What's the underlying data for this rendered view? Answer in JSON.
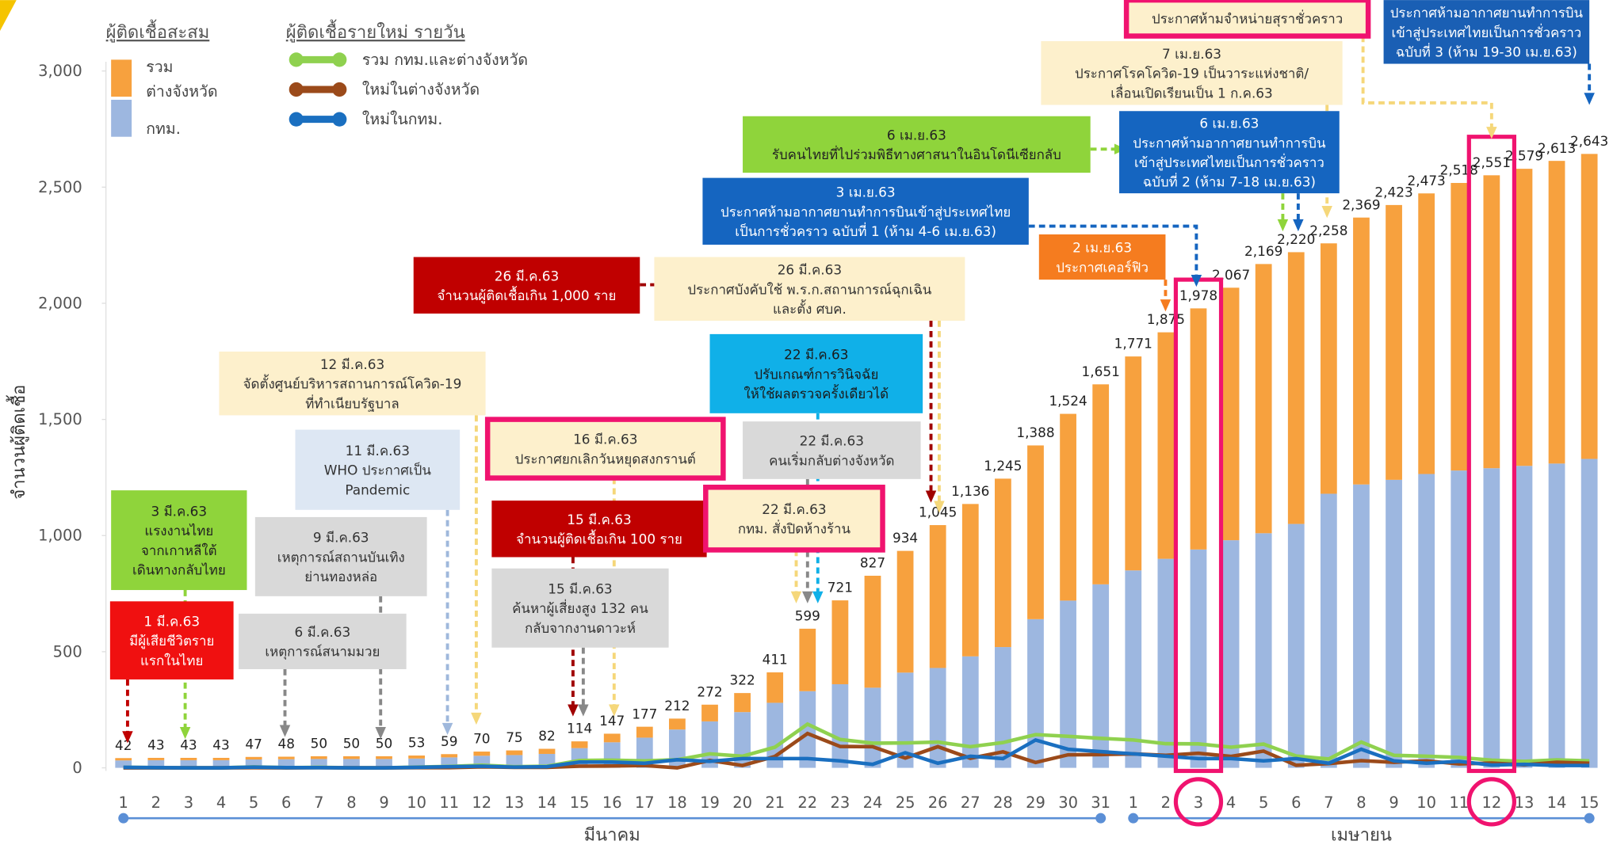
{
  "chart_data": {
    "type": "bar",
    "stacked": true,
    "y_label": "จำนวนผู้ติดเชื้อ",
    "categories": [
      "1",
      "2",
      "3",
      "4",
      "5",
      "6",
      "7",
      "8",
      "9",
      "10",
      "11",
      "12",
      "13",
      "14",
      "15",
      "16",
      "17",
      "18",
      "19",
      "20",
      "21",
      "22",
      "23",
      "24",
      "25",
      "26",
      "27",
      "28",
      "29",
      "30",
      "31",
      "1",
      "2",
      "3",
      "4",
      "5",
      "6",
      "7",
      "8",
      "9",
      "10",
      "11",
      "12",
      "13",
      "14",
      "15"
    ],
    "month_labels": [
      "มีนาคม",
      "เมษายน"
    ],
    "ylim": [
      0,
      3000
    ],
    "yticks": [
      0,
      500,
      {
        "value": 1000,
        "label": "1,000"
      },
      {
        "value": 1500,
        "label": "1,500"
      },
      {
        "value": 2000,
        "label": "2,000"
      },
      {
        "value": 2500,
        "label": "2,500"
      },
      {
        "value": 3000,
        "label": "3,000"
      }
    ],
    "grid": false,
    "stack_legend_title": "ผู้ติดเชื้อสะสม",
    "line_legend_title": "ผู้ติดเชื้อรายใหม่ รายวัน",
    "series": [
      {
        "name": "กทม.",
        "color": "#9db7e0",
        "values": [
          32,
          33,
          33,
          33,
          36,
          37,
          38,
          38,
          38,
          40,
          45,
          52,
          55,
          60,
          85,
          110,
          130,
          165,
          200,
          240,
          280,
          330,
          360,
          345,
          410,
          430,
          480,
          520,
          640,
          720,
          790,
          850,
          900,
          940,
          980,
          1010,
          1050,
          1180,
          1220,
          1240,
          1265,
          1280,
          1290,
          1300,
          1310,
          1330
        ]
      },
      {
        "name": "รวม ต่างจังหวัด",
        "color": "#f7a13e",
        "values": [
          10,
          10,
          10,
          10,
          11,
          11,
          12,
          12,
          12,
          13,
          14,
          18,
          20,
          22,
          29,
          37,
          47,
          47,
          72,
          82,
          131,
          269,
          361,
          482,
          524,
          615,
          656,
          725,
          748,
          804,
          861,
          921,
          975,
          1038,
          1087,
          1159,
          1170,
          1078,
          1149,
          1183,
          1208,
          1238,
          1261,
          1279,
          1303,
          1313
        ]
      }
    ],
    "totals": [
      42,
      43,
      43,
      43,
      47,
      48,
      50,
      50,
      50,
      53,
      59,
      70,
      75,
      82,
      114,
      147,
      177,
      212,
      272,
      322,
      411,
      599,
      721,
      827,
      934,
      1045,
      1136,
      1245,
      1388,
      1524,
      1651,
      1771,
      1875,
      1978,
      2067,
      2169,
      2220,
      2258,
      2369,
      2423,
      2473,
      2518,
      2551,
      2579,
      2613,
      2643
    ],
    "total_labels": [
      "42",
      "43",
      "43",
      "43",
      "47",
      "48",
      "50",
      "50",
      "50",
      "53",
      "59",
      "70",
      "75",
      "82",
      "114",
      "147",
      "177",
      "212",
      "272",
      "322",
      "411",
      "599",
      "721",
      "827",
      "934",
      "1,045",
      "1,136",
      "1,245",
      "1,388",
      "1,524",
      "1,651",
      "1,771",
      "1,875",
      "1,978",
      "2,067",
      "2,169",
      "2,220",
      "2,258",
      "2,369",
      "2,423",
      "2,473",
      "2,518",
      "2,551",
      "2,579",
      "2,613",
      "2,643"
    ],
    "line_series": [
      {
        "name": "รวม กทม.และต่างจังหวัด",
        "color": "#8fd14f",
        "values": [
          2,
          1,
          0,
          0,
          4,
          1,
          2,
          0,
          0,
          3,
          6,
          11,
          5,
          7,
          32,
          33,
          30,
          35,
          60,
          50,
          89,
          188,
          122,
          106,
          107,
          111,
          91,
          109,
          143,
          136,
          127,
          120,
          104,
          103,
          89,
          102,
          51,
          38,
          111,
          54,
          50,
          45,
          33,
          28,
          34,
          30
        ]
      },
      {
        "name": "ใหม่ในต่างจังหวัด",
        "color": "#9b4a1a",
        "values": [
          0,
          0,
          0,
          0,
          1,
          0,
          1,
          0,
          0,
          1,
          1,
          4,
          2,
          2,
          7,
          8,
          10,
          0,
          32,
          10,
          49,
          148,
          92,
          91,
          42,
          91,
          41,
          69,
          23,
          56,
          57,
          60,
          54,
          63,
          49,
          72,
          11,
          18,
          31,
          24,
          30,
          17,
          21,
          13,
          24,
          20
        ]
      },
      {
        "name": "ใหม่ในกทม.",
        "color": "#1a6fc0",
        "values": [
          2,
          1,
          0,
          0,
          3,
          1,
          1,
          0,
          0,
          2,
          5,
          7,
          3,
          5,
          25,
          25,
          20,
          35,
          28,
          40,
          40,
          40,
          30,
          15,
          65,
          20,
          50,
          40,
          120,
          80,
          70,
          60,
          50,
          40,
          40,
          30,
          40,
          20,
          80,
          30,
          20,
          28,
          12,
          15,
          10,
          10
        ]
      }
    ],
    "annotations": [
      {
        "lines": [
          "ประกาศห้ามจำหน่ายสุราชั่วคราว"
        ],
        "color": "#fdf0cc",
        "text_color": "#333",
        "border": "#f0136f"
      },
      {
        "lines": [
          "ประกาศห้ามอากาศยานทำการบิน",
          "เข้าสู่ประเทศไทยเป็นการชั่วคราว",
          "ฉบับที่ 3 (ห้าม 19-30 เม.ย.63)"
        ],
        "color": "#1a5fb4",
        "text_color": "#fff"
      },
      {
        "lines": [
          "7 เม.ย.63",
          "ประกาศโรคโควิด-19 เป็นวาระแห่งชาติ/",
          "เลื่อนเปิดเรียนเป็น 1 ก.ค.63"
        ],
        "color": "#fdf0cc",
        "text_color": "#333"
      },
      {
        "lines": [
          "6 เม.ย.63",
          "รับคนไทยที่ไปร่วมพิธีทางศาสนาในอินโดนีเซียกลับ"
        ],
        "color": "#8fd43b",
        "text_color": "#222"
      },
      {
        "lines": [
          "6 เม.ย.63",
          "ประกาศห้ามอากาศยานทำการบิน",
          "เข้าสู่ประเทศไทยเป็นการชั่วคราว",
          "ฉบับที่ 2 (ห้าม 7-18 เม.ย.63)"
        ],
        "color": "#1565c0",
        "text_color": "#fff"
      },
      {
        "lines": [
          "3 เม.ย.63",
          "ประกาศห้ามอากาศยานทำการบินเข้าสู่ประเทศไทย",
          "เป็นการชั่วคราว ฉบับที่ 1 (ห้าม 4-6 เม.ย.63)"
        ],
        "color": "#1565c0",
        "text_color": "#fff"
      },
      {
        "lines": [
          "2 เม.ย.63",
          "ประกาศเคอร์ฟิว"
        ],
        "color": "#f57c1f",
        "text_color": "#fff"
      },
      {
        "lines": [
          "26 มี.ค.63",
          "จำนวนผู้ติดเชื้อเกิน 1,000 ราย"
        ],
        "color": "#c00000",
        "text_color": "#fff"
      },
      {
        "lines": [
          "26 มี.ค.63",
          "ประกาศบังคับใช้ พ.ร.ก.สถานการณ์ฉุกเฉิน",
          "และตั้ง ศบค."
        ],
        "color": "#fdf0cc",
        "text_color": "#333"
      },
      {
        "lines": [
          "22 มี.ค.63",
          "ปรับเกณฑ์การวินิจฉัย",
          "ให้ใช้ผลตรวจครั้งเดียวได้"
        ],
        "color": "#10b0e8",
        "text_color": "#1a1a1a"
      },
      {
        "lines": [
          "12 มี.ค.63",
          "จัดตั้งศูนย์บริหารสถานการณ์โควิด-19",
          "ที่ทำเนียบรัฐบาล"
        ],
        "color": "#fdf0cc",
        "text_color": "#333"
      },
      {
        "lines": [
          "11 มี.ค.63",
          "WHO ประกาศเป็น",
          "Pandemic"
        ],
        "color": "#dde7f3",
        "text_color": "#333"
      },
      {
        "lines": [
          "16 มี.ค.63",
          "ประกาศยกเลิกวันหยุดสงกรานต์"
        ],
        "color": "#fdf0cc",
        "text_color": "#333",
        "border": "#f0136f"
      },
      {
        "lines": [
          "22 มี.ค.63",
          "คนเริ่มกลับต่างจังหวัด"
        ],
        "color": "#d9d9d9",
        "text_color": "#333"
      },
      {
        "lines": [
          "3 มี.ค.63",
          "แรงงานไทย",
          "จากเกาหลีใต้",
          "เดินทางกลับไทย"
        ],
        "color": "#8fd43b",
        "text_color": "#222"
      },
      {
        "lines": [
          "9 มี.ค.63",
          "เหตุการณ์สถานบันเทิง",
          "ย่านทองหล่อ"
        ],
        "color": "#d9d9d9",
        "text_color": "#333"
      },
      {
        "lines": [
          "15 มี.ค.63",
          "จำนวนผู้ติดเชื้อเกิน 100 ราย"
        ],
        "color": "#c00000",
        "text_color": "#fff"
      },
      {
        "lines": [
          "22 มี.ค.63",
          "กทม. สั่งปิดห้างร้าน"
        ],
        "color": "#fdf0cc",
        "text_color": "#333",
        "border": "#f0136f"
      },
      {
        "lines": [
          "15 มี.ค.63",
          "ค้นหาผู้เสี่ยงสูง 132 คน",
          "กลับจากงานดาวะห์"
        ],
        "color": "#d9d9d9",
        "text_color": "#333"
      },
      {
        "lines": [
          "6 มี.ค.63",
          "เหตุการณ์สนามมวย"
        ],
        "color": "#d9d9d9",
        "text_color": "#333"
      },
      {
        "lines": [
          "1 มี.ค.63",
          "มีผู้เสียชีวิตราย",
          "แรกในไทย"
        ],
        "color": "#f01010",
        "text_color": "#fff"
      }
    ]
  }
}
